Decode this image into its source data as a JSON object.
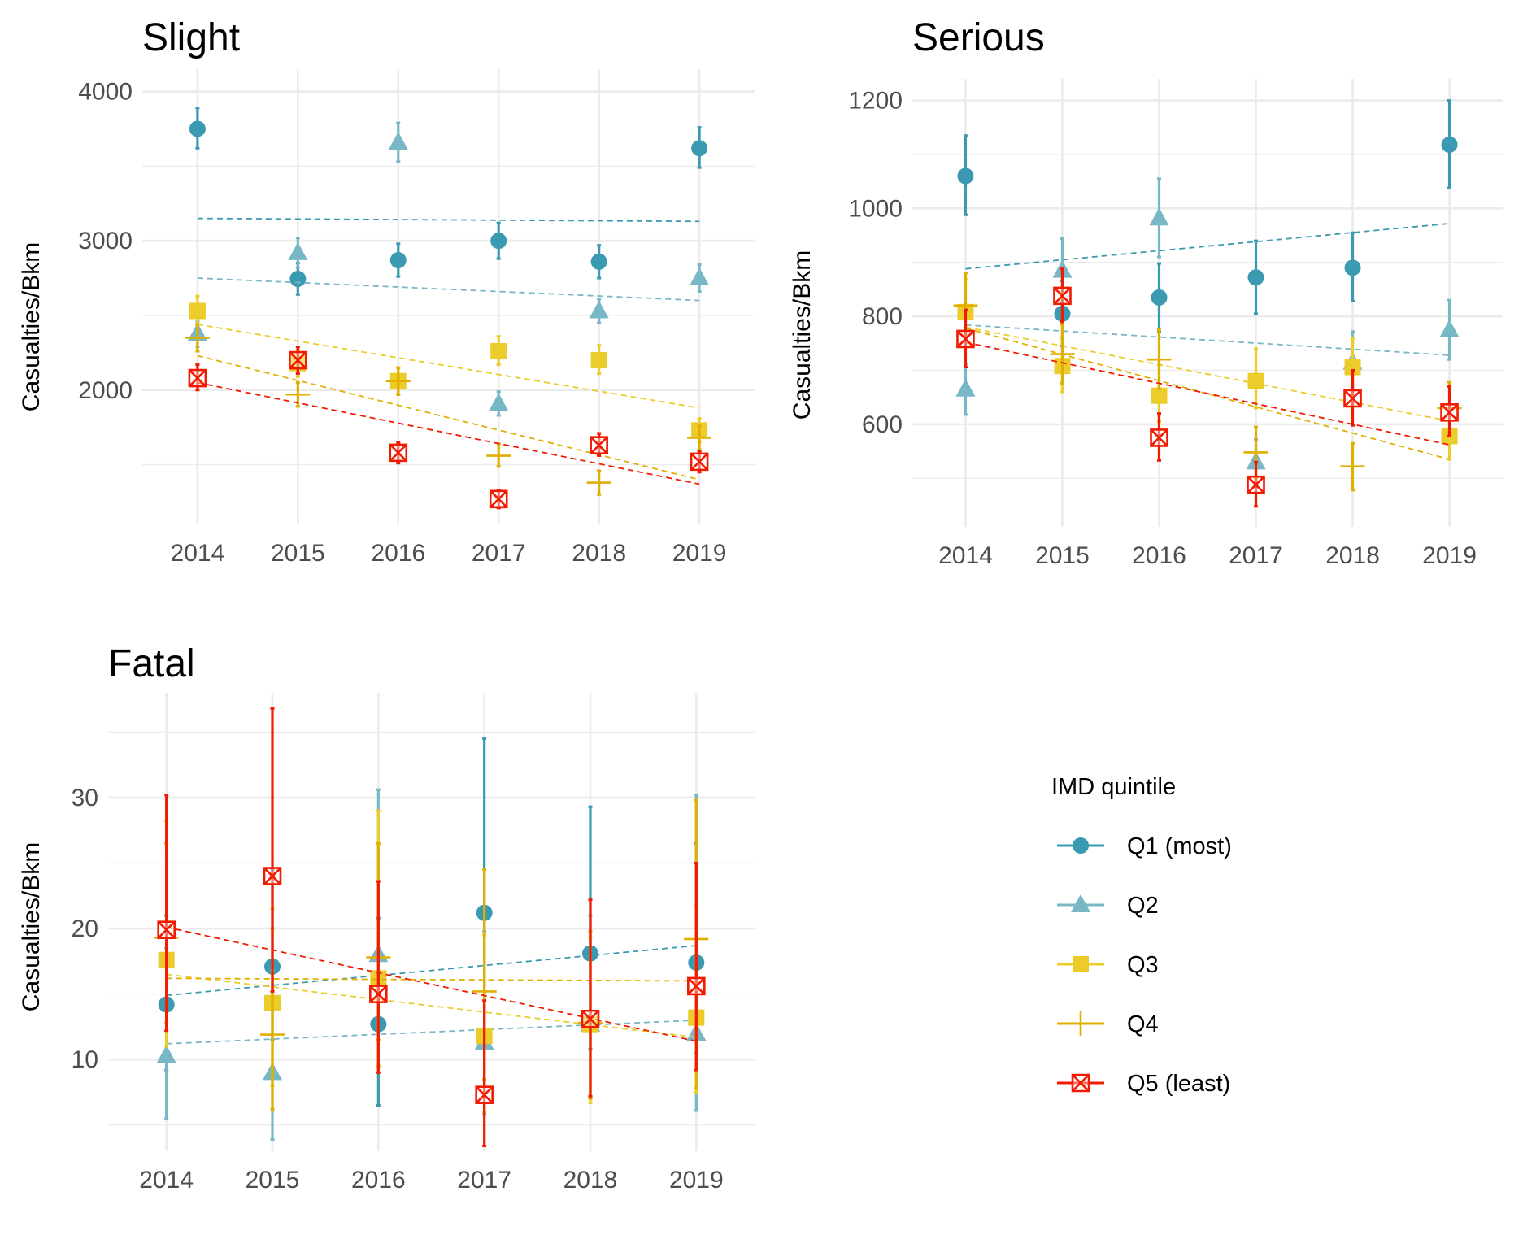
{
  "legend": {
    "title": "IMD quintile",
    "items": [
      {
        "key": "Q1",
        "label": "Q1 (most)",
        "color": "#3a9ab2",
        "shape": "circle"
      },
      {
        "key": "Q2",
        "label": "Q2",
        "color": "#78b7c5",
        "shape": "triangle"
      },
      {
        "key": "Q3",
        "label": "Q3",
        "color": "#ebcc2a",
        "shape": "square"
      },
      {
        "key": "Q4",
        "label": "Q4",
        "color": "#e1af00",
        "shape": "plus"
      },
      {
        "key": "Q5",
        "label": "Q5 (least)",
        "color": "#f21a00",
        "shape": "boxed-x"
      }
    ]
  },
  "chart_data": [
    {
      "panel": "slight",
      "type": "scatter",
      "title": "Slight",
      "ylabel": "Casualties/Bkm",
      "x": [
        2014,
        2015,
        2016,
        2017,
        2018,
        2019
      ],
      "ylim": [
        1100,
        4150
      ],
      "yticks": [
        2000,
        3000,
        4000
      ],
      "trend_lines": "dashed linear fit per series",
      "series": [
        {
          "name": "Q1 (most)",
          "values": [
            3750,
            2745,
            2870,
            3000,
            2860,
            3620
          ],
          "lower": [
            3620,
            2640,
            2760,
            2880,
            2750,
            3490
          ],
          "upper": [
            3890,
            2850,
            2980,
            3120,
            2970,
            3760
          ],
          "trend": [
            3150,
            3130
          ]
        },
        {
          "name": "Q2",
          "values": [
            2380,
            2920,
            3660,
            1910,
            2530,
            2750
          ],
          "lower": [
            2290,
            2820,
            3530,
            1830,
            2450,
            2660
          ],
          "upper": [
            2460,
            3020,
            3790,
            1990,
            2610,
            2840
          ],
          "trend": [
            2750,
            2600
          ]
        },
        {
          "name": "Q3",
          "values": [
            2530,
            2180,
            2060,
            2260,
            2200,
            1730
          ],
          "lower": [
            2440,
            2090,
            1970,
            2170,
            2110,
            1650
          ],
          "upper": [
            2630,
            2270,
            2150,
            2360,
            2300,
            1810
          ],
          "trend": [
            2440,
            1880
          ]
        },
        {
          "name": "Q4",
          "values": [
            2350,
            1970,
            2060,
            1560,
            1380,
            1680
          ],
          "lower": [
            2260,
            1890,
            1970,
            1490,
            1300,
            1600
          ],
          "upper": [
            2440,
            2050,
            2150,
            1640,
            1460,
            1760
          ],
          "trend": [
            2230,
            1400
          ]
        },
        {
          "name": "Q5 (least)",
          "values": [
            2080,
            2200,
            1580,
            1270,
            1630,
            1520
          ],
          "lower": [
            2000,
            2110,
            1510,
            1210,
            1560,
            1450
          ],
          "upper": [
            2170,
            2290,
            1650,
            1330,
            1710,
            1590
          ],
          "trend": [
            2050,
            1370
          ]
        }
      ]
    },
    {
      "panel": "serious",
      "type": "scatter",
      "title": "Serious",
      "ylabel": "Casualties/Bkm",
      "x": [
        2014,
        2015,
        2016,
        2017,
        2018,
        2019
      ],
      "ylim": [
        410,
        1240
      ],
      "yticks": [
        600,
        800,
        1000,
        1200
      ],
      "trend_lines": "dashed linear fit per series",
      "series": [
        {
          "name": "Q1 (most)",
          "values": [
            1060,
            805,
            835,
            872,
            890,
            1118
          ],
          "lower": [
            988,
            745,
            772,
            805,
            828,
            1038
          ],
          "upper": [
            1135,
            866,
            898,
            940,
            955,
            1200
          ],
          "trend": [
            888,
            972
          ]
        },
        {
          "name": "Q2",
          "values": [
            665,
            885,
            982,
            530,
            715,
            775
          ],
          "lower": [
            618,
            826,
            910,
            490,
            662,
            720
          ],
          "upper": [
            712,
            944,
            1055,
            572,
            772,
            830
          ],
          "trend": [
            784,
            728
          ]
        },
        {
          "name": "Q3",
          "values": [
            808,
            708,
            653,
            680,
            706,
            578
          ],
          "lower": [
            752,
            660,
            605,
            630,
            652,
            535
          ],
          "upper": [
            868,
            760,
            710,
            740,
            760,
            625
          ],
          "trend": [
            780,
            606
          ]
        },
        {
          "name": "Q4",
          "values": [
            820,
            730,
            720,
            548,
            522,
            630
          ],
          "lower": [
            765,
            676,
            666,
            500,
            478,
            585
          ],
          "upper": [
            880,
            785,
            775,
            595,
            565,
            678
          ],
          "trend": [
            778,
            535
          ]
        },
        {
          "name": "Q5 (least)",
          "values": [
            758,
            838,
            575,
            488,
            648,
            622
          ],
          "lower": [
            706,
            790,
            533,
            448,
            598,
            578
          ],
          "upper": [
            812,
            888,
            620,
            530,
            700,
            670
          ],
          "trend": [
            752,
            562
          ]
        }
      ]
    },
    {
      "panel": "fatal",
      "type": "scatter",
      "title": "Fatal",
      "ylabel": "Casualties/Bkm",
      "x": [
        2014,
        2015,
        2016,
        2017,
        2018,
        2019
      ],
      "ylim": [
        3,
        38
      ],
      "yticks": [
        10,
        20,
        30
      ],
      "trend_lines": "dashed linear fit per series",
      "series": [
        {
          "name": "Q1 (most)",
          "values": [
            14.2,
            17.1,
            12.7,
            21.2,
            18.1,
            17.4
          ],
          "lower": [
            9.2,
            11.5,
            6.5,
            12.0,
            10.8,
            10.5
          ],
          "upper": [
            21.0,
            24.5,
            20.8,
            34.5,
            29.3,
            26.5
          ],
          "trend": [
            14.9,
            18.7
          ]
        },
        {
          "name": "Q2",
          "values": [
            10.3,
            9.0,
            18.0,
            11.3,
            12.7,
            12.0
          ],
          "lower": [
            5.5,
            3.9,
            9.5,
            5.8,
            7.1,
            6.1
          ],
          "upper": [
            18.5,
            16.8,
            30.6,
            19.8,
            21.0,
            30.2
          ],
          "trend": [
            11.2,
            13.0
          ]
        },
        {
          "name": "Q3",
          "values": [
            17.6,
            14.3,
            16.2,
            11.8,
            12.7,
            13.2
          ],
          "lower": [
            11.0,
            8.0,
            9.5,
            6.0,
            6.7,
            7.5
          ],
          "upper": [
            28.2,
            21.5,
            29.0,
            19.5,
            19.3,
            21.7
          ],
          "trend": [
            16.5,
            11.7
          ]
        },
        {
          "name": "Q4",
          "values": [
            19.3,
            11.9,
            17.8,
            15.2,
            12.8,
            19.2
          ],
          "lower": [
            12.8,
            6.2,
            11.5,
            8.5,
            7.0,
            7.8
          ],
          "upper": [
            26.5,
            20.0,
            26.5,
            24.5,
            19.8,
            29.8
          ],
          "trend": [
            16.2,
            16.0
          ]
        },
        {
          "name": "Q5 (least)",
          "values": [
            19.9,
            24.0,
            15.0,
            7.3,
            13.1,
            15.6
          ],
          "lower": [
            12.2,
            15.2,
            9.0,
            3.4,
            7.2,
            9.2
          ],
          "upper": [
            30.2,
            36.8,
            23.6,
            14.5,
            22.2,
            25.0
          ],
          "trend": [
            20.1,
            11.4
          ]
        }
      ]
    }
  ]
}
